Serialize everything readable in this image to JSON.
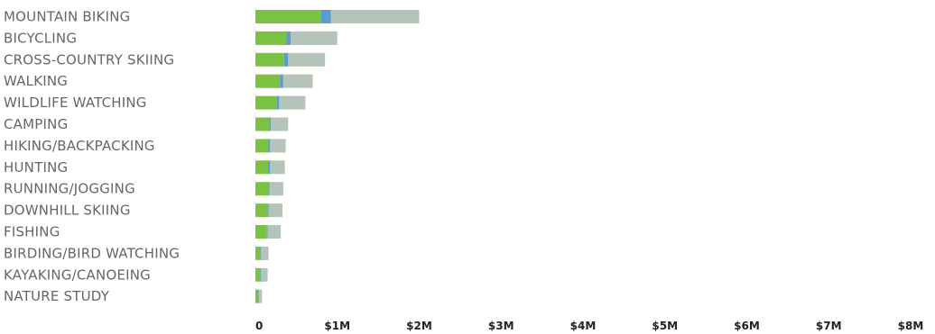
{
  "chart_data": {
    "type": "bar",
    "orientation": "horizontal",
    "stacked": true,
    "categories": [
      "MOUNTAIN BIKING",
      "BICYCLING",
      "CROSS-COUNTRY SKIING",
      "WALKING",
      "WILDLIFE WATCHING",
      "CAMPING",
      "HIKING/BACKPACKING",
      "HUNTING",
      "RUNNING/JOGGING",
      "DOWNHILL SKIING",
      "FISHING",
      "BIRDING/BIRD WATCHING",
      "KAYAKING/CANOEING",
      "NATURE STUDY"
    ],
    "series": [
      {
        "color": "#7cc242",
        "values": [
          800000,
          380000,
          350000,
          300000,
          260000,
          170000,
          160000,
          160000,
          160000,
          150000,
          140000,
          60000,
          60000,
          40000
        ]
      },
      {
        "color": "#5b9bd5",
        "values": [
          120000,
          50000,
          50000,
          40000,
          30000,
          20000,
          20000,
          20000,
          10000,
          10000,
          10000,
          10000,
          10000,
          5000
        ]
      },
      {
        "color": "#b4c4b9",
        "values": [
          1080000,
          570000,
          450000,
          360000,
          320000,
          210000,
          190000,
          180000,
          170000,
          170000,
          160000,
          90000,
          80000,
          35000
        ]
      }
    ],
    "x_ticks": [
      "0",
      "$1M",
      "$2M",
      "$3M",
      "$4M",
      "$5M",
      "$6M",
      "$7M",
      "$8M"
    ],
    "xlim": [
      0,
      8000000
    ],
    "title": "",
    "xlabel": "",
    "ylabel": "",
    "grid": false,
    "legend": "none"
  }
}
